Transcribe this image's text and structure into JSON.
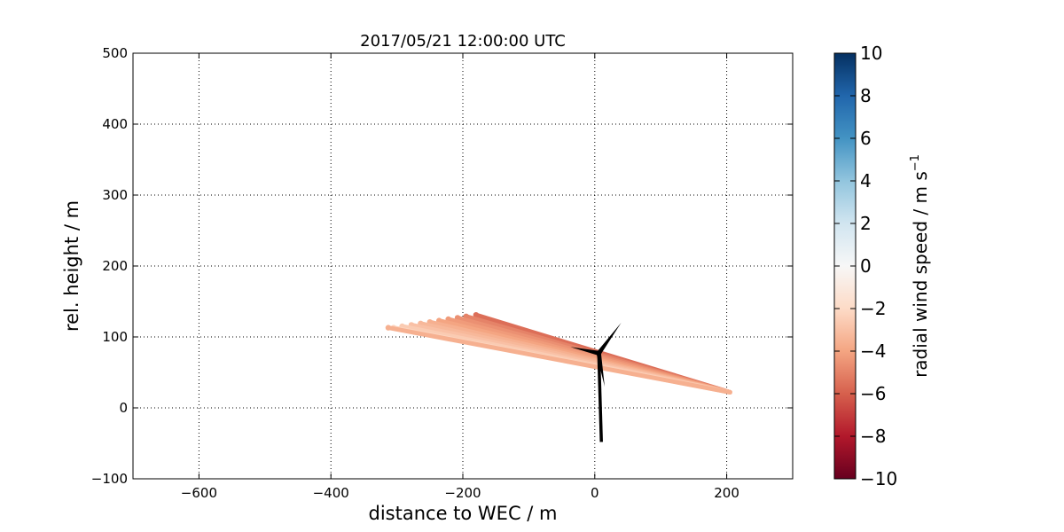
{
  "chart_data": {
    "type": "scatter",
    "title": "2017/05/21 12:00:00 UTC",
    "xlabel": "distance to WEC / m",
    "ylabel": "rel. height / m",
    "xlim": [
      -700,
      300
    ],
    "ylim": [
      -100,
      500
    ],
    "xticks": [
      -600,
      -400,
      -200,
      0,
      200
    ],
    "yticks": [
      -100,
      0,
      100,
      200,
      300,
      400,
      500
    ],
    "xtick_labels": [
      "−600",
      "−400",
      "−200",
      "0",
      "200"
    ],
    "ytick_labels": [
      "−100",
      "0",
      "100",
      "200",
      "300",
      "400",
      "500"
    ],
    "grid": true,
    "colorbar": {
      "label": "radial wind speed / m s",
      "label_superscript": "−1",
      "min": -10,
      "max": 10,
      "colormap": "RdBu",
      "ticks": [
        10,
        8,
        6,
        4,
        2,
        0,
        -2,
        -4,
        -6,
        -8,
        -10
      ],
      "tick_labels": [
        "10",
        "8",
        "6",
        "4",
        "2",
        "0",
        "−2",
        "−4",
        "−6",
        "−8",
        "−10"
      ]
    },
    "scan_origin": {
      "x": 205,
      "y": 22
    },
    "scan_rays": [
      {
        "end_x": -180,
        "end_y": 131,
        "wind": -5.6
      },
      {
        "end_x": -195,
        "end_y": 129,
        "wind": -5.0
      },
      {
        "end_x": -208,
        "end_y": 127,
        "wind": -4.6
      },
      {
        "end_x": -222,
        "end_y": 125,
        "wind": -4.3
      },
      {
        "end_x": -236,
        "end_y": 123,
        "wind": -4.0
      },
      {
        "end_x": -250,
        "end_y": 121,
        "wind": -3.6
      },
      {
        "end_x": -264,
        "end_y": 119,
        "wind": -3.3
      },
      {
        "end_x": -278,
        "end_y": 117,
        "wind": -3.0
      },
      {
        "end_x": -292,
        "end_y": 115,
        "wind": -2.6
      },
      {
        "end_x": -305,
        "end_y": 113,
        "wind": -2.3
      },
      {
        "end_x": -313,
        "end_y": 113,
        "wind": -3.6
      }
    ],
    "turbine": {
      "tower_base": {
        "x": 10,
        "y": -48
      },
      "hub": {
        "x": 6,
        "y": 77
      },
      "blade_tips": [
        {
          "x": 40,
          "y": 120
        },
        {
          "x": -37,
          "y": 86
        },
        {
          "x": 15,
          "y": 30
        }
      ]
    }
  }
}
